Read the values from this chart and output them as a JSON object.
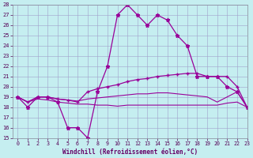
{
  "xlabel": "Windchill (Refroidissement éolien,°C)",
  "background_color": "#c5eef0",
  "grid_color": "#a0a0cc",
  "line_color": "#990099",
  "xlim": [
    -0.5,
    23
  ],
  "ylim": [
    15,
    28
  ],
  "yticks": [
    15,
    16,
    17,
    18,
    19,
    20,
    21,
    22,
    23,
    24,
    25,
    26,
    27,
    28
  ],
  "xticks": [
    0,
    1,
    2,
    3,
    4,
    5,
    6,
    7,
    8,
    9,
    10,
    11,
    12,
    13,
    14,
    15,
    16,
    17,
    18,
    19,
    20,
    21,
    22,
    23
  ],
  "series": [
    {
      "x": [
        0,
        1,
        2,
        3,
        4,
        5,
        6,
        7,
        8,
        9,
        10,
        11,
        12,
        13,
        14,
        15,
        16,
        17,
        18,
        19,
        20,
        21,
        22,
        23
      ],
      "y": [
        19,
        18,
        19,
        19,
        18.5,
        16,
        16,
        15,
        19.5,
        22,
        27,
        28,
        27,
        26,
        27,
        26.5,
        25,
        24,
        21,
        21,
        21,
        20,
        19.5,
        18
      ],
      "marker": "*",
      "markersize": 3.5,
      "linewidth": 0.9
    },
    {
      "x": [
        0,
        1,
        2,
        3,
        4,
        5,
        6,
        7,
        8,
        9,
        10,
        11,
        12,
        13,
        14,
        15,
        16,
        17,
        18,
        19,
        20,
        21,
        22,
        23
      ],
      "y": [
        19,
        18.5,
        19,
        19,
        18.8,
        18.7,
        18.5,
        19.5,
        19.8,
        20.0,
        20.2,
        20.5,
        20.7,
        20.8,
        21.0,
        21.1,
        21.2,
        21.3,
        21.3,
        21.0,
        21.0,
        21.0,
        20.0,
        18
      ],
      "marker": "+",
      "markersize": 3,
      "linewidth": 0.9
    },
    {
      "x": [
        0,
        1,
        2,
        3,
        4,
        5,
        6,
        7,
        8,
        9,
        10,
        11,
        12,
        13,
        14,
        15,
        16,
        17,
        18,
        19,
        20,
        21,
        22,
        23
      ],
      "y": [
        19,
        18.5,
        19,
        19,
        18.8,
        18.7,
        18.6,
        18.8,
        18.9,
        19.0,
        19.1,
        19.2,
        19.3,
        19.3,
        19.4,
        19.4,
        19.3,
        19.2,
        19.1,
        19.0,
        18.5,
        19.0,
        19.5,
        18
      ],
      "marker": null,
      "markersize": 0,
      "linewidth": 0.8
    },
    {
      "x": [
        0,
        1,
        2,
        3,
        4,
        5,
        6,
        7,
        8,
        9,
        10,
        11,
        12,
        13,
        14,
        15,
        16,
        17,
        18,
        19,
        20,
        21,
        22,
        23
      ],
      "y": [
        19,
        18.5,
        18.8,
        18.7,
        18.5,
        18.4,
        18.3,
        18.3,
        18.2,
        18.2,
        18.1,
        18.2,
        18.2,
        18.2,
        18.2,
        18.2,
        18.2,
        18.2,
        18.2,
        18.2,
        18.2,
        18.4,
        18.5,
        18
      ],
      "marker": null,
      "markersize": 0,
      "linewidth": 0.8
    }
  ]
}
